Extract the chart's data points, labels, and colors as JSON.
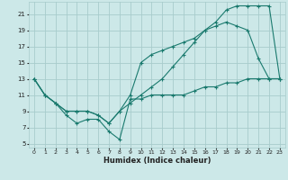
{
  "xlabel": "Humidex (Indice chaleur)",
  "bg_color": "#cce8e8",
  "grid_color": "#a8cccc",
  "line_color": "#1a7a6e",
  "xlim": [
    -0.5,
    23.5
  ],
  "ylim": [
    4.5,
    22.5
  ],
  "yticks": [
    5,
    7,
    9,
    11,
    13,
    15,
    17,
    19,
    21
  ],
  "xticks": [
    0,
    1,
    2,
    3,
    4,
    5,
    6,
    7,
    8,
    9,
    10,
    11,
    12,
    13,
    14,
    15,
    16,
    17,
    18,
    19,
    20,
    21,
    22,
    23
  ],
  "line1_x": [
    0,
    1,
    2,
    3,
    4,
    5,
    6,
    7,
    8,
    9,
    10,
    11,
    12,
    13,
    14,
    15,
    16,
    17,
    18,
    19,
    20,
    21,
    22,
    23
  ],
  "line1_y": [
    13,
    11,
    10,
    8.5,
    7.5,
    8,
    8,
    6.5,
    5.5,
    10.5,
    10.5,
    11,
    11,
    11,
    11,
    11.5,
    12,
    12,
    12.5,
    12.5,
    13,
    13,
    13,
    13
  ],
  "line2_x": [
    0,
    1,
    2,
    3,
    4,
    5,
    6,
    7,
    8,
    9,
    10,
    11,
    12,
    13,
    14,
    15,
    16,
    17,
    18,
    19,
    20,
    21,
    22,
    23
  ],
  "line2_y": [
    13,
    11,
    10,
    9,
    9,
    9,
    8.5,
    7.5,
    9,
    11,
    15,
    16,
    16.5,
    17,
    17.5,
    18,
    19,
    19.5,
    20,
    19.5,
    19,
    15.5,
    13,
    13
  ],
  "line3_x": [
    0,
    1,
    2,
    3,
    4,
    5,
    6,
    7,
    8,
    9,
    10,
    11,
    12,
    13,
    14,
    15,
    16,
    17,
    18,
    19,
    20,
    21,
    22,
    23
  ],
  "line3_y": [
    13,
    11,
    10,
    9,
    9,
    9,
    8.5,
    7.5,
    9,
    10,
    11,
    12,
    13,
    14.5,
    16,
    17.5,
    19,
    20,
    21.5,
    22,
    22,
    22,
    22,
    13
  ]
}
